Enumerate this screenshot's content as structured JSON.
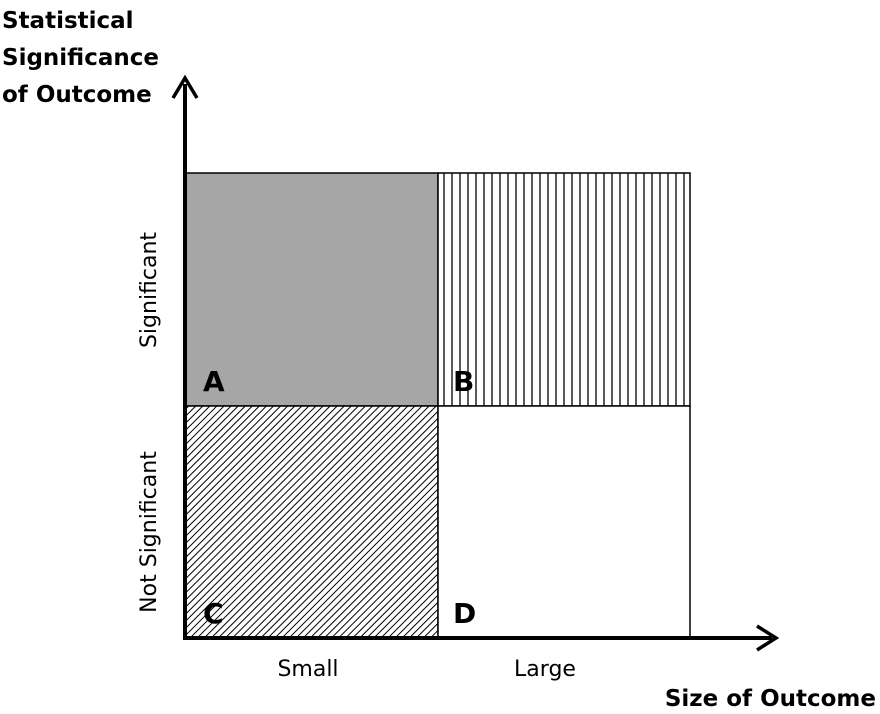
{
  "y_axis": {
    "title": [
      "Statistical",
      "Significance",
      "of Outcome"
    ],
    "categories": [
      "Significant",
      "Not Significant"
    ]
  },
  "x_axis": {
    "title": "Size of Outcome",
    "categories": [
      "Small",
      "Large"
    ]
  },
  "quadrants": [
    {
      "label": "A"
    },
    {
      "label": "B"
    },
    {
      "label": "C"
    },
    {
      "label": "D"
    }
  ]
}
